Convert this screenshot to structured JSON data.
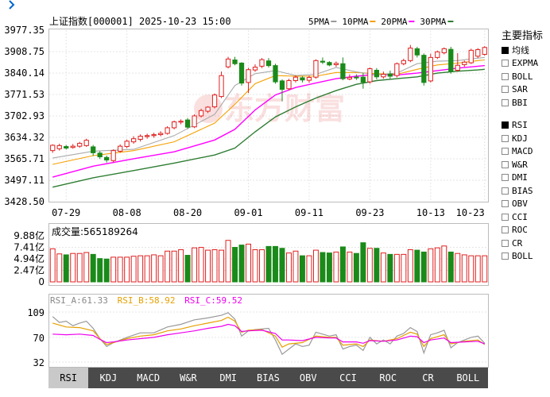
{
  "header": {
    "stock": "上证指数[000001] 2025-10-23 15:00",
    "ma_legend": [
      {
        "label": "5PMA",
        "color": "#999999"
      },
      {
        "label": "10PMA",
        "color": "#f5a000"
      },
      {
        "label": "20PMA",
        "color": "#ff00ff"
      },
      {
        "label": "30PMA",
        "color": "#2e7d32"
      }
    ]
  },
  "watermark": "东方财富",
  "price_axis": {
    "ticks": [
      "3977.35",
      "3908.75",
      "3840.14",
      "3771.53",
      "3702.93",
      "3634.32",
      "3565.71",
      "3497.11",
      "3428.50"
    ],
    "min": 3428.5,
    "max": 3977.35
  },
  "date_labels": [
    "07-29",
    "08-08",
    "08-20",
    "09-01",
    "09-11",
    "09-23",
    "10-13",
    "10-23"
  ],
  "volume": {
    "label": "成交量:565189264",
    "ticks": [
      "9.88亿",
      "7.41亿",
      "4.94亿",
      "2.47亿",
      "0"
    ]
  },
  "rsi": {
    "labels": [
      {
        "text": "RSI_A:61.33",
        "color": "#888888"
      },
      {
        "text": "RSI_B:58.92",
        "color": "#e6a000"
      },
      {
        "text": "RSI_C:59.52",
        "color": "#ee00ee"
      }
    ],
    "ticks": [
      "109",
      "70",
      "32"
    ]
  },
  "sidebar": {
    "title": "主要指标",
    "main_items": [
      {
        "label": "均线",
        "checked": true
      },
      {
        "label": "EXPMA",
        "checked": false
      },
      {
        "label": "BOLL",
        "checked": false
      },
      {
        "label": "SAR",
        "checked": false
      },
      {
        "label": "BBI",
        "checked": false
      }
    ],
    "sub_items": [
      {
        "label": "RSI",
        "checked": true
      },
      {
        "label": "KDJ",
        "checked": false
      },
      {
        "label": "MACD",
        "checked": false
      },
      {
        "label": "W&R",
        "checked": false
      },
      {
        "label": "DMI",
        "checked": false
      },
      {
        "label": "BIAS",
        "checked": false
      },
      {
        "label": "OBV",
        "checked": false
      },
      {
        "label": "CCI",
        "checked": false
      },
      {
        "label": "ROC",
        "checked": false
      },
      {
        "label": "CR",
        "checked": false
      },
      {
        "label": "BOLL",
        "checked": false
      }
    ]
  },
  "tabs": [
    {
      "label": "RSI",
      "active": true
    },
    {
      "label": "KDJ"
    },
    {
      "label": "MACD"
    },
    {
      "label": "W&R"
    },
    {
      "label": "DMI"
    },
    {
      "label": "BIAS"
    },
    {
      "label": "OBV"
    },
    {
      "label": "CCI"
    },
    {
      "label": "ROC"
    },
    {
      "label": "CR"
    },
    {
      "label": "BOLL"
    }
  ],
  "chart_data": {
    "type": "candlestick",
    "candles": [
      {
        "o": 3592,
        "c": 3609,
        "h": 3612,
        "l": 3585
      },
      {
        "o": 3598,
        "c": 3608,
        "h": 3614,
        "l": 3592
      },
      {
        "o": 3605,
        "c": 3600,
        "h": 3610,
        "l": 3595
      },
      {
        "o": 3602,
        "c": 3606,
        "h": 3613,
        "l": 3598
      },
      {
        "o": 3606,
        "c": 3615,
        "h": 3620,
        "l": 3601
      },
      {
        "o": 3608,
        "c": 3625,
        "h": 3630,
        "l": 3604
      },
      {
        "o": 3604,
        "c": 3585,
        "h": 3610,
        "l": 3575
      },
      {
        "o": 3584,
        "c": 3572,
        "h": 3590,
        "l": 3565
      },
      {
        "o": 3570,
        "c": 3562,
        "h": 3576,
        "l": 3554
      },
      {
        "o": 3560,
        "c": 3592,
        "h": 3596,
        "l": 3555
      },
      {
        "o": 3590,
        "c": 3606,
        "h": 3612,
        "l": 3585
      },
      {
        "o": 3605,
        "c": 3622,
        "h": 3627,
        "l": 3600
      },
      {
        "o": 3620,
        "c": 3630,
        "h": 3638,
        "l": 3614
      },
      {
        "o": 3628,
        "c": 3638,
        "h": 3644,
        "l": 3621
      },
      {
        "o": 3637,
        "c": 3640,
        "h": 3646,
        "l": 3630
      },
      {
        "o": 3640,
        "c": 3643,
        "h": 3649,
        "l": 3633
      },
      {
        "o": 3643,
        "c": 3647,
        "h": 3654,
        "l": 3638
      },
      {
        "o": 3647,
        "c": 3665,
        "h": 3670,
        "l": 3643
      },
      {
        "o": 3665,
        "c": 3684,
        "h": 3688,
        "l": 3660
      },
      {
        "o": 3683,
        "c": 3686,
        "h": 3692,
        "l": 3676
      },
      {
        "o": 3690,
        "c": 3667,
        "h": 3696,
        "l": 3662
      },
      {
        "o": 3668,
        "c": 3703,
        "h": 3708,
        "l": 3664
      },
      {
        "o": 3703,
        "c": 3720,
        "h": 3726,
        "l": 3698
      },
      {
        "o": 3718,
        "c": 3731,
        "h": 3734,
        "l": 3712
      },
      {
        "o": 3732,
        "c": 3770,
        "h": 3775,
        "l": 3727
      },
      {
        "o": 3765,
        "c": 3832,
        "h": 3845,
        "l": 3760
      },
      {
        "o": 3860,
        "c": 3885,
        "h": 3892,
        "l": 3855
      },
      {
        "o": 3882,
        "c": 3870,
        "h": 3892,
        "l": 3865
      },
      {
        "o": 3872,
        "c": 3808,
        "h": 3875,
        "l": 3800
      },
      {
        "o": 3810,
        "c": 3851,
        "h": 3857,
        "l": 3776
      },
      {
        "o": 3850,
        "c": 3859,
        "h": 3868,
        "l": 3844
      },
      {
        "o": 3862,
        "c": 3883,
        "h": 3888,
        "l": 3856
      },
      {
        "o": 3879,
        "c": 3864,
        "h": 3888,
        "l": 3858
      },
      {
        "o": 3864,
        "c": 3812,
        "h": 3870,
        "l": 3806
      },
      {
        "o": 3815,
        "c": 3788,
        "h": 3820,
        "l": 3750
      },
      {
        "o": 3790,
        "c": 3816,
        "h": 3822,
        "l": 3785
      },
      {
        "o": 3816,
        "c": 3827,
        "h": 3833,
        "l": 3810
      },
      {
        "o": 3825,
        "c": 3818,
        "h": 3830,
        "l": 3810
      },
      {
        "o": 3817,
        "c": 3826,
        "h": 3832,
        "l": 3809
      },
      {
        "o": 3827,
        "c": 3880,
        "h": 3884,
        "l": 3822
      },
      {
        "o": 3878,
        "c": 3875,
        "h": 3890,
        "l": 3869
      },
      {
        "o": 3874,
        "c": 3866,
        "h": 3878,
        "l": 3862
      },
      {
        "o": 3867,
        "c": 3871,
        "h": 3877,
        "l": 3860
      },
      {
        "o": 3870,
        "c": 3822,
        "h": 3890,
        "l": 3817
      },
      {
        "o": 3821,
        "c": 3826,
        "h": 3836,
        "l": 3817
      },
      {
        "o": 3827,
        "c": 3826,
        "h": 3836,
        "l": 3818
      },
      {
        "o": 3827,
        "c": 3811,
        "h": 3840,
        "l": 3790
      },
      {
        "o": 3812,
        "c": 3854,
        "h": 3858,
        "l": 3806
      },
      {
        "o": 3849,
        "c": 3828,
        "h": 3856,
        "l": 3820
      },
      {
        "o": 3828,
        "c": 3836,
        "h": 3845,
        "l": 3822
      },
      {
        "o": 3837,
        "c": 3830,
        "h": 3848,
        "l": 3822
      },
      {
        "o": 3832,
        "c": 3870,
        "h": 3874,
        "l": 3826
      },
      {
        "o": 3870,
        "c": 3880,
        "h": 3886,
        "l": 3865
      },
      {
        "o": 3880,
        "c": 3920,
        "h": 3930,
        "l": 3875
      },
      {
        "o": 3918,
        "c": 3898,
        "h": 3924,
        "l": 3890
      },
      {
        "o": 3897,
        "c": 3810,
        "h": 3903,
        "l": 3800
      },
      {
        "o": 3815,
        "c": 3890,
        "h": 3902,
        "l": 3810
      },
      {
        "o": 3890,
        "c": 3908,
        "h": 3912,
        "l": 3885
      },
      {
        "o": 3905,
        "c": 3918,
        "h": 3922,
        "l": 3900
      },
      {
        "o": 3916,
        "c": 3845,
        "h": 3924,
        "l": 3838
      },
      {
        "o": 3849,
        "c": 3865,
        "h": 3904,
        "l": 3844
      },
      {
        "o": 3867,
        "c": 3875,
        "h": 3880,
        "l": 3860
      },
      {
        "o": 3873,
        "c": 3913,
        "h": 3918,
        "l": 3869
      },
      {
        "o": 3894,
        "c": 3915,
        "h": 3920,
        "l": 3888
      },
      {
        "o": 3900,
        "c": 3922,
        "h": 3926,
        "l": 3896
      }
    ],
    "ma5": [
      [
        0,
        3568
      ],
      [
        6,
        3590
      ],
      [
        12,
        3596
      ],
      [
        18,
        3640
      ],
      [
        24,
        3708
      ],
      [
        27,
        3800
      ],
      [
        30,
        3838
      ],
      [
        33,
        3848
      ],
      [
        36,
        3832
      ],
      [
        39,
        3836
      ],
      [
        42,
        3858
      ],
      [
        45,
        3844
      ],
      [
        48,
        3834
      ],
      [
        51,
        3840
      ],
      [
        54,
        3870
      ],
      [
        57,
        3878
      ],
      [
        60,
        3880
      ],
      [
        63,
        3888
      ],
      [
        64,
        3890
      ]
    ],
    "ma10": [
      [
        0,
        3548
      ],
      [
        6,
        3576
      ],
      [
        12,
        3592
      ],
      [
        18,
        3620
      ],
      [
        24,
        3680
      ],
      [
        27,
        3740
      ],
      [
        30,
        3806
      ],
      [
        33,
        3832
      ],
      [
        36,
        3830
      ],
      [
        39,
        3830
      ],
      [
        42,
        3842
      ],
      [
        45,
        3842
      ],
      [
        48,
        3838
      ],
      [
        51,
        3836
      ],
      [
        54,
        3852
      ],
      [
        57,
        3866
      ],
      [
        60,
        3872
      ],
      [
        63,
        3880
      ],
      [
        64,
        3882
      ]
    ],
    "ma20": [
      [
        0,
        3507
      ],
      [
        6,
        3542
      ],
      [
        12,
        3566
      ],
      [
        18,
        3588
      ],
      [
        24,
        3626
      ],
      [
        27,
        3660
      ],
      [
        30,
        3722
      ],
      [
        33,
        3770
      ],
      [
        36,
        3794
      ],
      [
        39,
        3808
      ],
      [
        42,
        3822
      ],
      [
        45,
        3830
      ],
      [
        48,
        3836
      ],
      [
        51,
        3834
      ],
      [
        54,
        3840
      ],
      [
        57,
        3848
      ],
      [
        60,
        3856
      ],
      [
        63,
        3862
      ],
      [
        64,
        3864
      ]
    ],
    "ma30": [
      [
        0,
        3475
      ],
      [
        6,
        3505
      ],
      [
        12,
        3528
      ],
      [
        18,
        3552
      ],
      [
        24,
        3578
      ],
      [
        27,
        3600
      ],
      [
        30,
        3652
      ],
      [
        33,
        3700
      ],
      [
        36,
        3732
      ],
      [
        39,
        3760
      ],
      [
        42,
        3784
      ],
      [
        45,
        3804
      ],
      [
        48,
        3816
      ],
      [
        51,
        3822
      ],
      [
        54,
        3828
      ],
      [
        57,
        3840
      ],
      [
        60,
        3846
      ],
      [
        63,
        3850
      ],
      [
        64,
        3852
      ]
    ],
    "volume": [
      7.1,
      6.0,
      5.8,
      6.1,
      6.1,
      6.3,
      5.9,
      5.0,
      4.9,
      5.3,
      5.3,
      5.3,
      5.5,
      5.6,
      5.6,
      5.8,
      5.6,
      6.6,
      6.6,
      6.9,
      5.7,
      7.3,
      7.4,
      6.8,
      6.9,
      6.8,
      8.9,
      7.4,
      7.9,
      8.1,
      6.9,
      6.9,
      7.6,
      7.6,
      7.2,
      6.2,
      6.6,
      5.6,
      5.6,
      6.8,
      6.3,
      6.2,
      6.4,
      7.5,
      6.4,
      6.1,
      8.4,
      7.2,
      7.2,
      6.2,
      5.9,
      5.9,
      5.9,
      6.9,
      6.8,
      6.4,
      7.1,
      7.3,
      7.7,
      6.4,
      6.1,
      5.8,
      5.6,
      5.6,
      5.6
    ],
    "rsi_a": [
      [
        0,
        102
      ],
      [
        1,
        93
      ],
      [
        2,
        95
      ],
      [
        3,
        88
      ],
      [
        4,
        92
      ],
      [
        5,
        95
      ],
      [
        6,
        84
      ],
      [
        7,
        68
      ],
      [
        8,
        56
      ],
      [
        9,
        62
      ],
      [
        11,
        70
      ],
      [
        13,
        77
      ],
      [
        15,
        77
      ],
      [
        17,
        86
      ],
      [
        19,
        90
      ],
      [
        21,
        97
      ],
      [
        23,
        100
      ],
      [
        25,
        104
      ],
      [
        26,
        108
      ],
      [
        27,
        98
      ],
      [
        28,
        72
      ],
      [
        29,
        80
      ],
      [
        30,
        82
      ],
      [
        32,
        84
      ],
      [
        33,
        66
      ],
      [
        34,
        44
      ],
      [
        35,
        52
      ],
      [
        36,
        60
      ],
      [
        37,
        56
      ],
      [
        38,
        58
      ],
      [
        39,
        78
      ],
      [
        40,
        75
      ],
      [
        41,
        72
      ],
      [
        42,
        74
      ],
      [
        43,
        52
      ],
      [
        44,
        56
      ],
      [
        45,
        58
      ],
      [
        46,
        50
      ],
      [
        47,
        70
      ],
      [
        48,
        60
      ],
      [
        49,
        66
      ],
      [
        50,
        60
      ],
      [
        51,
        72
      ],
      [
        52,
        76
      ],
      [
        53,
        85
      ],
      [
        54,
        79
      ],
      [
        55,
        46
      ],
      [
        56,
        74
      ],
      [
        57,
        77
      ],
      [
        58,
        81
      ],
      [
        59,
        54
      ],
      [
        60,
        62
      ],
      [
        61,
        66
      ],
      [
        62,
        70
      ],
      [
        63,
        72
      ],
      [
        64,
        61
      ]
    ],
    "rsi_b": [
      [
        0,
        92
      ],
      [
        2,
        86
      ],
      [
        4,
        85
      ],
      [
        6,
        80
      ],
      [
        7,
        68
      ],
      [
        8,
        59
      ],
      [
        9,
        62
      ],
      [
        11,
        68
      ],
      [
        13,
        72
      ],
      [
        15,
        74
      ],
      [
        17,
        80
      ],
      [
        19,
        83
      ],
      [
        21,
        88
      ],
      [
        23,
        92
      ],
      [
        25,
        96
      ],
      [
        26,
        101
      ],
      [
        27,
        95
      ],
      [
        28,
        78
      ],
      [
        29,
        81
      ],
      [
        31,
        82
      ],
      [
        33,
        72
      ],
      [
        34,
        55
      ],
      [
        35,
        60
      ],
      [
        37,
        62
      ],
      [
        39,
        72
      ],
      [
        41,
        70
      ],
      [
        42,
        70
      ],
      [
        43,
        58
      ],
      [
        45,
        60
      ],
      [
        46,
        56
      ],
      [
        47,
        66
      ],
      [
        49,
        64
      ],
      [
        51,
        68
      ],
      [
        53,
        78
      ],
      [
        54,
        75
      ],
      [
        55,
        56
      ],
      [
        56,
        68
      ],
      [
        58,
        74
      ],
      [
        59,
        60
      ],
      [
        61,
        64
      ],
      [
        63,
        66
      ],
      [
        64,
        59
      ]
    ],
    "rsi_c": [
      [
        0,
        75
      ],
      [
        2,
        74
      ],
      [
        4,
        75
      ],
      [
        6,
        73
      ],
      [
        7,
        67
      ],
      [
        8,
        62
      ],
      [
        9,
        63
      ],
      [
        11,
        66
      ],
      [
        13,
        68
      ],
      [
        15,
        70
      ],
      [
        17,
        74
      ],
      [
        19,
        77
      ],
      [
        21,
        80
      ],
      [
        23,
        84
      ],
      [
        25,
        87
      ],
      [
        26,
        90
      ],
      [
        27,
        88
      ],
      [
        28,
        79
      ],
      [
        29,
        80
      ],
      [
        31,
        81
      ],
      [
        33,
        76
      ],
      [
        34,
        66
      ],
      [
        35,
        66
      ],
      [
        37,
        65
      ],
      [
        39,
        70
      ],
      [
        41,
        69
      ],
      [
        42,
        69
      ],
      [
        43,
        63
      ],
      [
        45,
        63
      ],
      [
        46,
        61
      ],
      [
        47,
        65
      ],
      [
        49,
        64
      ],
      [
        51,
        66
      ],
      [
        53,
        72
      ],
      [
        54,
        71
      ],
      [
        55,
        62
      ],
      [
        56,
        66
      ],
      [
        58,
        69
      ],
      [
        59,
        62
      ],
      [
        61,
        63
      ],
      [
        63,
        64
      ],
      [
        64,
        60
      ]
    ]
  }
}
